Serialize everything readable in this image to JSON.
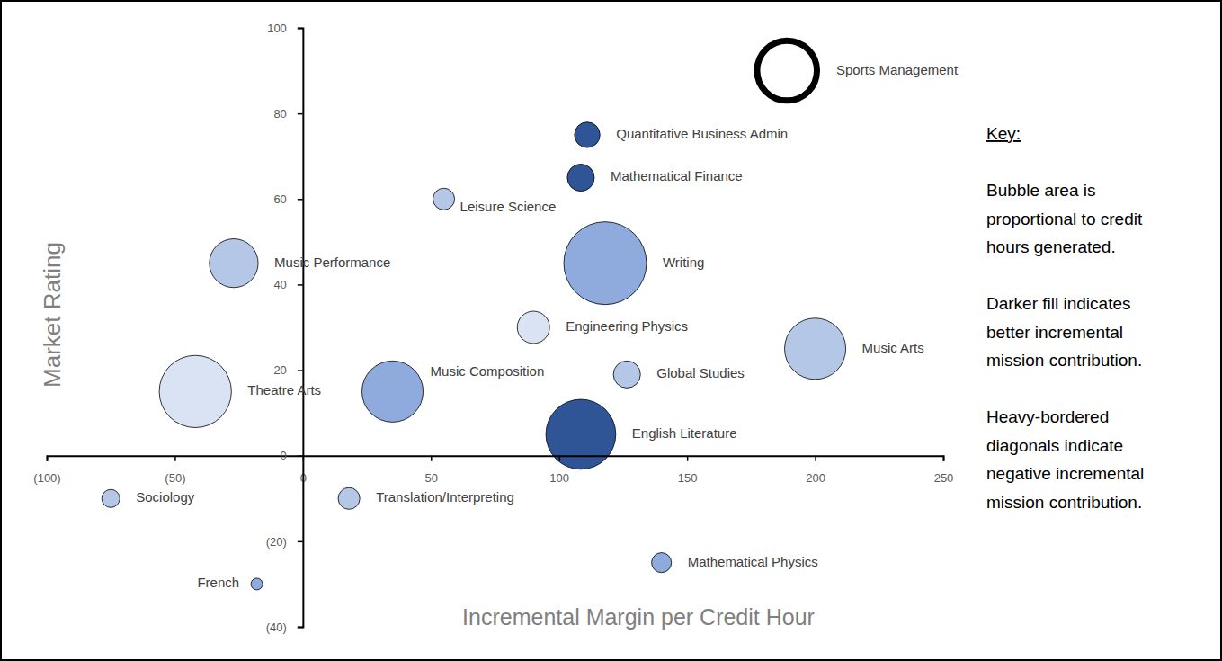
{
  "chart_data": {
    "type": "bubble",
    "x_label": "Incremental Margin per Credit Hour",
    "y_label": "Market Rating",
    "labels": [
      "Sports Management",
      "Quantitative Business Admin",
      "Mathematical Finance",
      "Leisure Science",
      "Writing",
      "Music Performance",
      "Engineering Physics",
      "Music Arts",
      "Global Studies",
      "Theatre Arts",
      "Music Composition",
      "English Literature",
      "Sociology",
      "Translation/Interpreting",
      "Mathematical Physics",
      "French"
    ],
    "x": [
      189,
      111,
      108.5,
      55,
      118,
      -27,
      90,
      200,
      126.5,
      -42,
      35,
      108.5,
      -75,
      18,
      140,
      -18
    ],
    "values": [
      90,
      75,
      65,
      60,
      45,
      45,
      30,
      25,
      19,
      15,
      15,
      5,
      -10,
      -10,
      -25,
      -30
    ],
    "sizes": [
      1100,
      200,
      225,
      144,
      2100,
      730,
      320,
      1150,
      225,
      1600,
      1150,
      1500,
      100,
      144,
      121,
      42
    ],
    "mission": [
      -1,
      4,
      4,
      2,
      3,
      2,
      1,
      2,
      2,
      1,
      3,
      4,
      2,
      2,
      3,
      3
    ],
    "colors": [
      "#ffffff",
      "#2f5597",
      "#2f5597",
      "#b4c7e7",
      "#8faadc",
      "#b4c7e7",
      "#dae3f3",
      "#b4c7e7",
      "#b4c7e7",
      "#dae3f3",
      "#8faadc",
      "#2f5597",
      "#b4c7e7",
      "#b4c7e7",
      "#8faadc",
      "#8faadc"
    ],
    "xlim": [
      -100,
      250
    ],
    "xticks": [
      {
        "value": -100,
        "label": "(100)"
      },
      {
        "value": -50,
        "label": "(50)"
      },
      0,
      50,
      100,
      150,
      200,
      250
    ],
    "ylim": [
      -40,
      100
    ],
    "yticks": [
      {
        "value": -40,
        "label": "(40)"
      },
      {
        "value": -20,
        "label": "(20)"
      },
      0,
      20,
      40,
      60,
      80,
      100
    ],
    "grid": false,
    "key": {
      "title": "Key:",
      "paragraphs": [
        [
          "Bubble area is",
          "proportional to credit",
          "hours generated."
        ],
        [
          "Darker fill indicates",
          "better incremental",
          "mission contribution."
        ],
        [
          "Heavy-bordered",
          "diagonals indicate",
          "negative incremental",
          "mission contribution."
        ]
      ]
    }
  }
}
